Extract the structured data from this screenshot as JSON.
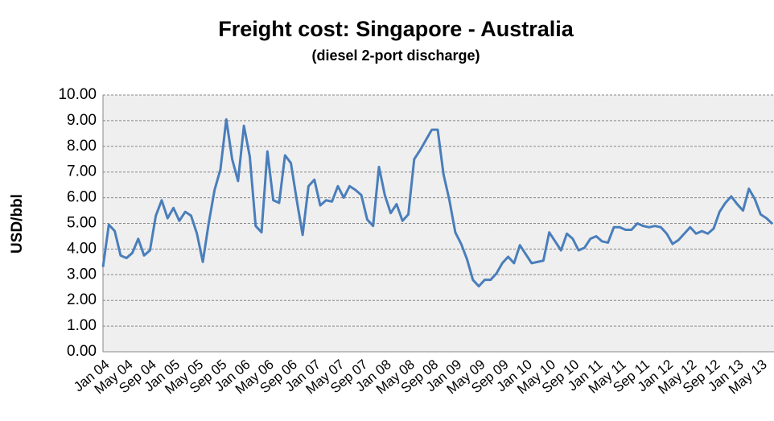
{
  "chart_data": {
    "type": "line",
    "title": "Freight cost: Singapore - Australia",
    "subtitle": "(diesel 2-port discharge)",
    "y_label": "USD/bbl",
    "categories": [
      "Jan 04",
      null,
      null,
      null,
      "May 04",
      null,
      null,
      null,
      "Sep 04",
      null,
      null,
      null,
      "Jan 05",
      null,
      null,
      null,
      "May 05",
      null,
      null,
      null,
      "Sep 05",
      null,
      null,
      null,
      "Jan 06",
      null,
      null,
      null,
      "May 06",
      null,
      null,
      null,
      "Sep 06",
      null,
      null,
      null,
      "Jan 07",
      null,
      null,
      null,
      "May 07",
      null,
      null,
      null,
      "Sep 07",
      null,
      null,
      null,
      "Jan 08",
      null,
      null,
      null,
      "May 08",
      null,
      null,
      null,
      "Sep 08",
      null,
      null,
      null,
      "Jan 09",
      null,
      null,
      null,
      "May 09",
      null,
      null,
      null,
      "Sep 09",
      null,
      null,
      null,
      "Jan 10",
      null,
      null,
      null,
      "May 10",
      null,
      null,
      null,
      "Sep 10",
      null,
      null,
      null,
      "Jan 11",
      null,
      null,
      null,
      "May 11",
      null,
      null,
      null,
      "Sep 11",
      null,
      null,
      null,
      "Jan 12",
      null,
      null,
      null,
      "May 12",
      null,
      null,
      null,
      "Sep 12",
      null,
      null,
      null,
      "Jan 13",
      null,
      null,
      null,
      "May 13",
      null,
      null
    ],
    "series": [
      {
        "name": "Freight cost",
        "color": "#4a7ebb",
        "values": [
          3.3,
          4.95,
          4.7,
          3.75,
          3.65,
          3.85,
          4.4,
          3.75,
          3.95,
          5.3,
          5.9,
          5.2,
          5.6,
          5.1,
          5.45,
          5.3,
          4.6,
          3.5,
          5.0,
          6.3,
          7.1,
          9.05,
          7.5,
          6.65,
          8.8,
          7.6,
          4.9,
          4.65,
          7.8,
          5.9,
          5.8,
          7.65,
          7.35,
          5.9,
          4.55,
          6.45,
          6.7,
          5.7,
          5.9,
          5.85,
          6.45,
          6.0,
          6.45,
          6.3,
          6.1,
          5.15,
          4.9,
          7.2,
          6.1,
          5.4,
          5.75,
          5.1,
          5.35,
          7.5,
          7.85,
          8.25,
          8.65,
          8.65,
          6.9,
          5.9,
          4.65,
          4.2,
          3.6,
          2.8,
          2.55,
          2.8,
          2.8,
          3.05,
          3.45,
          3.7,
          3.45,
          4.15,
          3.8,
          3.45,
          3.5,
          3.55,
          4.65,
          4.3,
          3.95,
          4.6,
          4.4,
          3.95,
          4.05,
          4.4,
          4.5,
          4.3,
          4.25,
          4.85,
          4.85,
          4.75,
          4.75,
          5.0,
          4.9,
          4.85,
          4.9,
          4.85,
          4.6,
          4.2,
          4.35,
          4.6,
          4.85,
          4.6,
          4.7,
          4.6,
          4.8,
          5.45,
          5.8,
          6.05,
          5.75,
          5.5,
          6.35,
          5.95,
          5.35,
          5.2,
          4.98
        ]
      }
    ],
    "ylim": [
      0,
      10
    ],
    "yticks": [
      {
        "value": 0,
        "label": "0.00"
      },
      {
        "value": 1,
        "label": "1.00"
      },
      {
        "value": 2,
        "label": "2.00"
      },
      {
        "value": 3,
        "label": "3.00"
      },
      {
        "value": 4,
        "label": "4.00"
      },
      {
        "value": 5,
        "label": "5.00"
      },
      {
        "value": 6,
        "label": "6.00"
      },
      {
        "value": 7,
        "label": "7.00"
      },
      {
        "value": 8,
        "label": "8.00"
      },
      {
        "value": 9,
        "label": "9.00"
      },
      {
        "value": 10,
        "label": "10.00"
      }
    ],
    "grid": true
  }
}
